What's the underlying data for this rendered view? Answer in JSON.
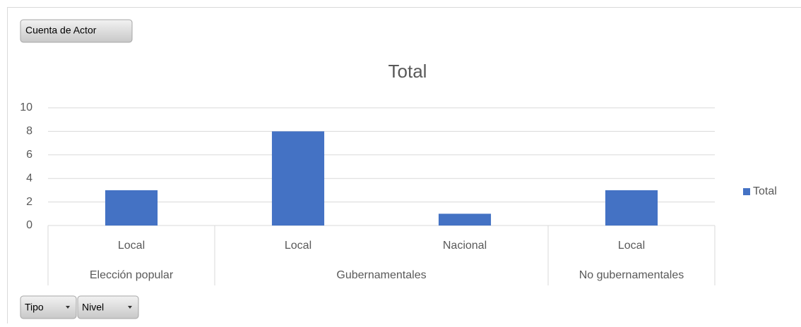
{
  "buttons": {
    "value_field": "Cuenta de Actor",
    "axis_fields": [
      "Tipo",
      "Nivel"
    ]
  },
  "chart_data": {
    "type": "bar",
    "title": "Total",
    "groups": [
      {
        "label": "Elección popular",
        "categories": [
          "Local"
        ]
      },
      {
        "label": "Gubernamentales",
        "categories": [
          "Local",
          "Nacional"
        ]
      },
      {
        "label": "No gubernamentales",
        "categories": [
          "Local"
        ]
      }
    ],
    "series": [
      {
        "name": "Total",
        "color": "#4472c4",
        "values": [
          3,
          8,
          1,
          3
        ]
      }
    ],
    "ylim": [
      0,
      10
    ],
    "yticks": [
      0,
      2,
      4,
      6,
      8,
      10
    ],
    "grid": true,
    "legend": "right"
  }
}
